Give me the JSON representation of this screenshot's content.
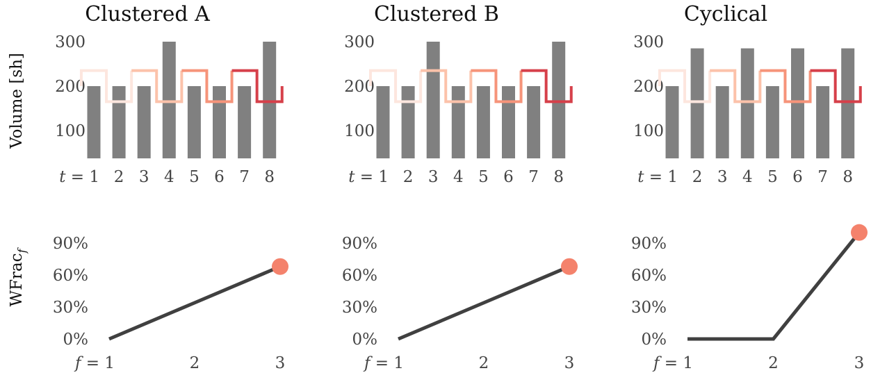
{
  "colors": {
    "bars": "#808080",
    "line": "#404040",
    "marker": "#f4826c",
    "segments": [
      "#fde6de",
      "#fcc2aa",
      "#f6947a",
      "#d6404a"
    ]
  },
  "labels": {
    "volume_ylabel": "Volume [sh]",
    "wfrac_ylabel_main": "WFrac",
    "wfrac_ylabel_sub": "f",
    "t_var": "t",
    "f_var": "f",
    "equals": " = "
  },
  "chart_data": [
    {
      "type": "bar",
      "title": "Clustered A",
      "ylabel": "Volume [sh]",
      "x": [
        1,
        2,
        3,
        4,
        5,
        6,
        7,
        8
      ],
      "tick_labels": [
        "t = 1",
        "2",
        "3",
        "4",
        "5",
        "6",
        "7",
        "8"
      ],
      "values": [
        200,
        200,
        200,
        300,
        200,
        200,
        200,
        300
      ],
      "yticks": [
        100,
        200,
        300
      ],
      "ylim": [
        40,
        310
      ],
      "overlay_step": {
        "description": "alternating target profile in four colour shades",
        "levels": [
          235,
          165,
          235,
          165,
          235,
          165,
          235,
          165
        ],
        "end_value": 200
      }
    },
    {
      "type": "bar",
      "title": "Clustered B",
      "x": [
        1,
        2,
        3,
        4,
        5,
        6,
        7,
        8
      ],
      "tick_labels": [
        "t = 1",
        "2",
        "3",
        "4",
        "5",
        "6",
        "7",
        "8"
      ],
      "values": [
        200,
        200,
        300,
        200,
        200,
        200,
        200,
        300
      ],
      "yticks": [
        100,
        200,
        300
      ],
      "ylim": [
        40,
        310
      ],
      "overlay_step": {
        "levels": [
          235,
          165,
          235,
          165,
          235,
          165,
          235,
          165
        ],
        "end_value": 200
      }
    },
    {
      "type": "bar",
      "title": "Cyclical",
      "x": [
        1,
        2,
        3,
        4,
        5,
        6,
        7,
        8
      ],
      "tick_labels": [
        "t = 1",
        "2",
        "3",
        "4",
        "5",
        "6",
        "7",
        "8"
      ],
      "values": [
        200,
        285,
        200,
        285,
        200,
        285,
        200,
        285
      ],
      "yticks": [
        100,
        200,
        300
      ],
      "ylim": [
        40,
        310
      ],
      "overlay_step": {
        "levels": [
          235,
          165,
          235,
          165,
          235,
          165,
          235,
          165
        ],
        "end_value": 200
      }
    },
    {
      "type": "line",
      "ylabel": "WFrac_f",
      "x": [
        1,
        2,
        3
      ],
      "tick_labels": [
        "f = 1",
        "2",
        "3"
      ],
      "values": [
        0,
        34,
        68
      ],
      "marker_at": 3,
      "yticks": [
        "0%",
        "30%",
        "60%",
        "90%"
      ],
      "ylim": [
        0,
        100
      ]
    },
    {
      "type": "line",
      "x": [
        1,
        2,
        3
      ],
      "tick_labels": [
        "f = 1",
        "2",
        "3"
      ],
      "values": [
        0,
        34,
        68
      ],
      "marker_at": 3,
      "yticks": [
        "0%",
        "30%",
        "60%",
        "90%"
      ],
      "ylim": [
        0,
        100
      ]
    },
    {
      "type": "line",
      "x": [
        1,
        2,
        3
      ],
      "tick_labels": [
        "f = 1",
        "2",
        "3"
      ],
      "values": [
        0,
        0,
        100
      ],
      "marker_at": 3,
      "yticks": [
        "0%",
        "30%",
        "60%",
        "90%"
      ],
      "ylim": [
        0,
        100
      ]
    }
  ]
}
